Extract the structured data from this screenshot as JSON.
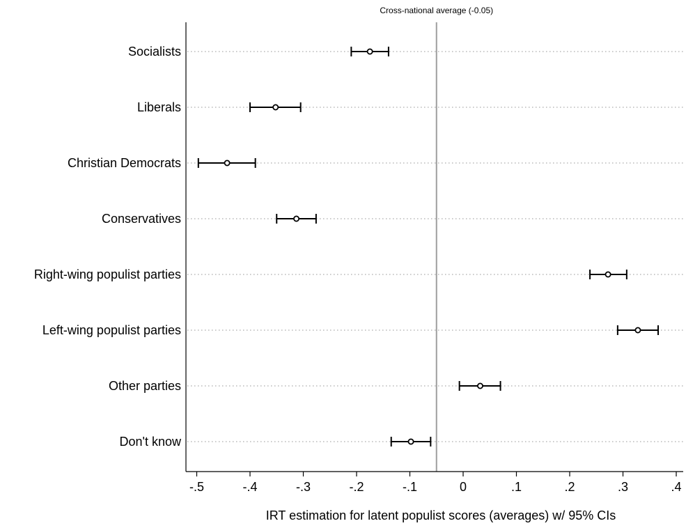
{
  "chart_data": {
    "type": "dot",
    "xlabel": "IRT estimation for latent populist scores (averages) w/ 95% CIs",
    "xlim": [
      -0.525,
      0.42
    ],
    "x_ticks": [
      -0.5,
      -0.4,
      -0.3,
      -0.2,
      -0.1,
      0,
      0.1,
      0.2,
      0.3,
      0.4
    ],
    "x_tick_labels": [
      "-.5",
      "-.4",
      "-.3",
      "-.2",
      "-.1",
      "0",
      ".1",
      ".2",
      ".3",
      ".4"
    ],
    "grid": "horizontal-dotted",
    "reference_line": {
      "value": -0.05,
      "label": "Cross-national average (-0.05)"
    },
    "categories": [
      "Socialists",
      "Liberals",
      "Christian Democrats",
      "Conservatives",
      "Right-wing populist parties",
      "Left-wing populist parties",
      "Other parties",
      "Don't know"
    ],
    "values": [
      -0.175,
      -0.352,
      -0.443,
      -0.313,
      0.272,
      0.328,
      0.032,
      -0.098
    ],
    "ci_lower": [
      -0.21,
      -0.4,
      -0.497,
      -0.35,
      0.238,
      0.29,
      -0.007,
      -0.135
    ],
    "ci_upper": [
      -0.14,
      -0.305,
      -0.39,
      -0.276,
      0.307,
      0.366,
      0.07,
      -0.061
    ]
  }
}
